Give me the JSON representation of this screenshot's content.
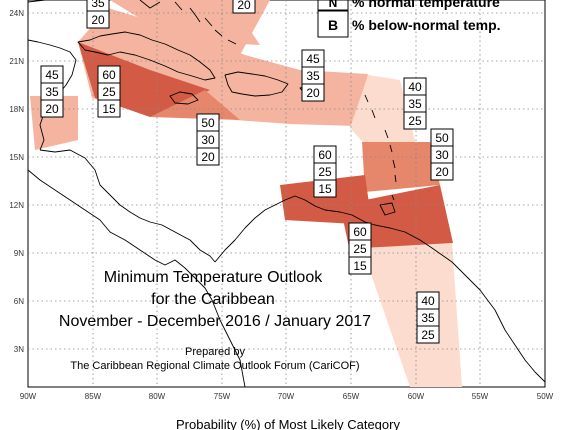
{
  "map": {
    "title_line1": "Minimum Temperature Outlook",
    "title_line2": "for the Caribbean",
    "title_line3": "November - December 2016 / January 2017",
    "prepared_by": "Prepared by",
    "organization": "The Caribbean Regional Climate Outlook Forum (CariCOF)",
    "footer": "Probability (%) of Most Likely Category",
    "legend": {
      "n_key": "N",
      "n_label": "% normal temperature",
      "b_key": "B",
      "b_label": "% below-normal temp."
    },
    "lat_labels": [
      "24N",
      "21N",
      "18N",
      "15N",
      "12N",
      "9N",
      "6N",
      "3N"
    ],
    "lon_labels": [
      "90W",
      "85W",
      "80W",
      "75W",
      "70W",
      "65W",
      "60W",
      "55W",
      "50W"
    ],
    "colors": {
      "above_60": "#d35a44",
      "above_50": "#e6876c",
      "above_45": "#f4b4a0",
      "above_40": "#fbdccf",
      "coast": "#000000",
      "grid": "#888888"
    },
    "forecast_boxes": [
      {
        "values": [
          "35",
          "20"
        ]
      },
      {
        "values": [
          "20"
        ]
      },
      {
        "values": [
          "45",
          "35",
          "20"
        ]
      },
      {
        "values": [
          "60",
          "25",
          "15"
        ]
      },
      {
        "values": [
          "45",
          "35",
          "20"
        ]
      },
      {
        "values": [
          "40",
          "35",
          "25"
        ]
      },
      {
        "values": [
          "50",
          "30",
          "20"
        ]
      },
      {
        "values": [
          "50",
          "30",
          "20"
        ]
      },
      {
        "values": [
          "60",
          "25",
          "15"
        ]
      },
      {
        "values": [
          "60",
          "25",
          "15"
        ]
      },
      {
        "values": [
          "40",
          "35",
          "25"
        ]
      }
    ]
  }
}
